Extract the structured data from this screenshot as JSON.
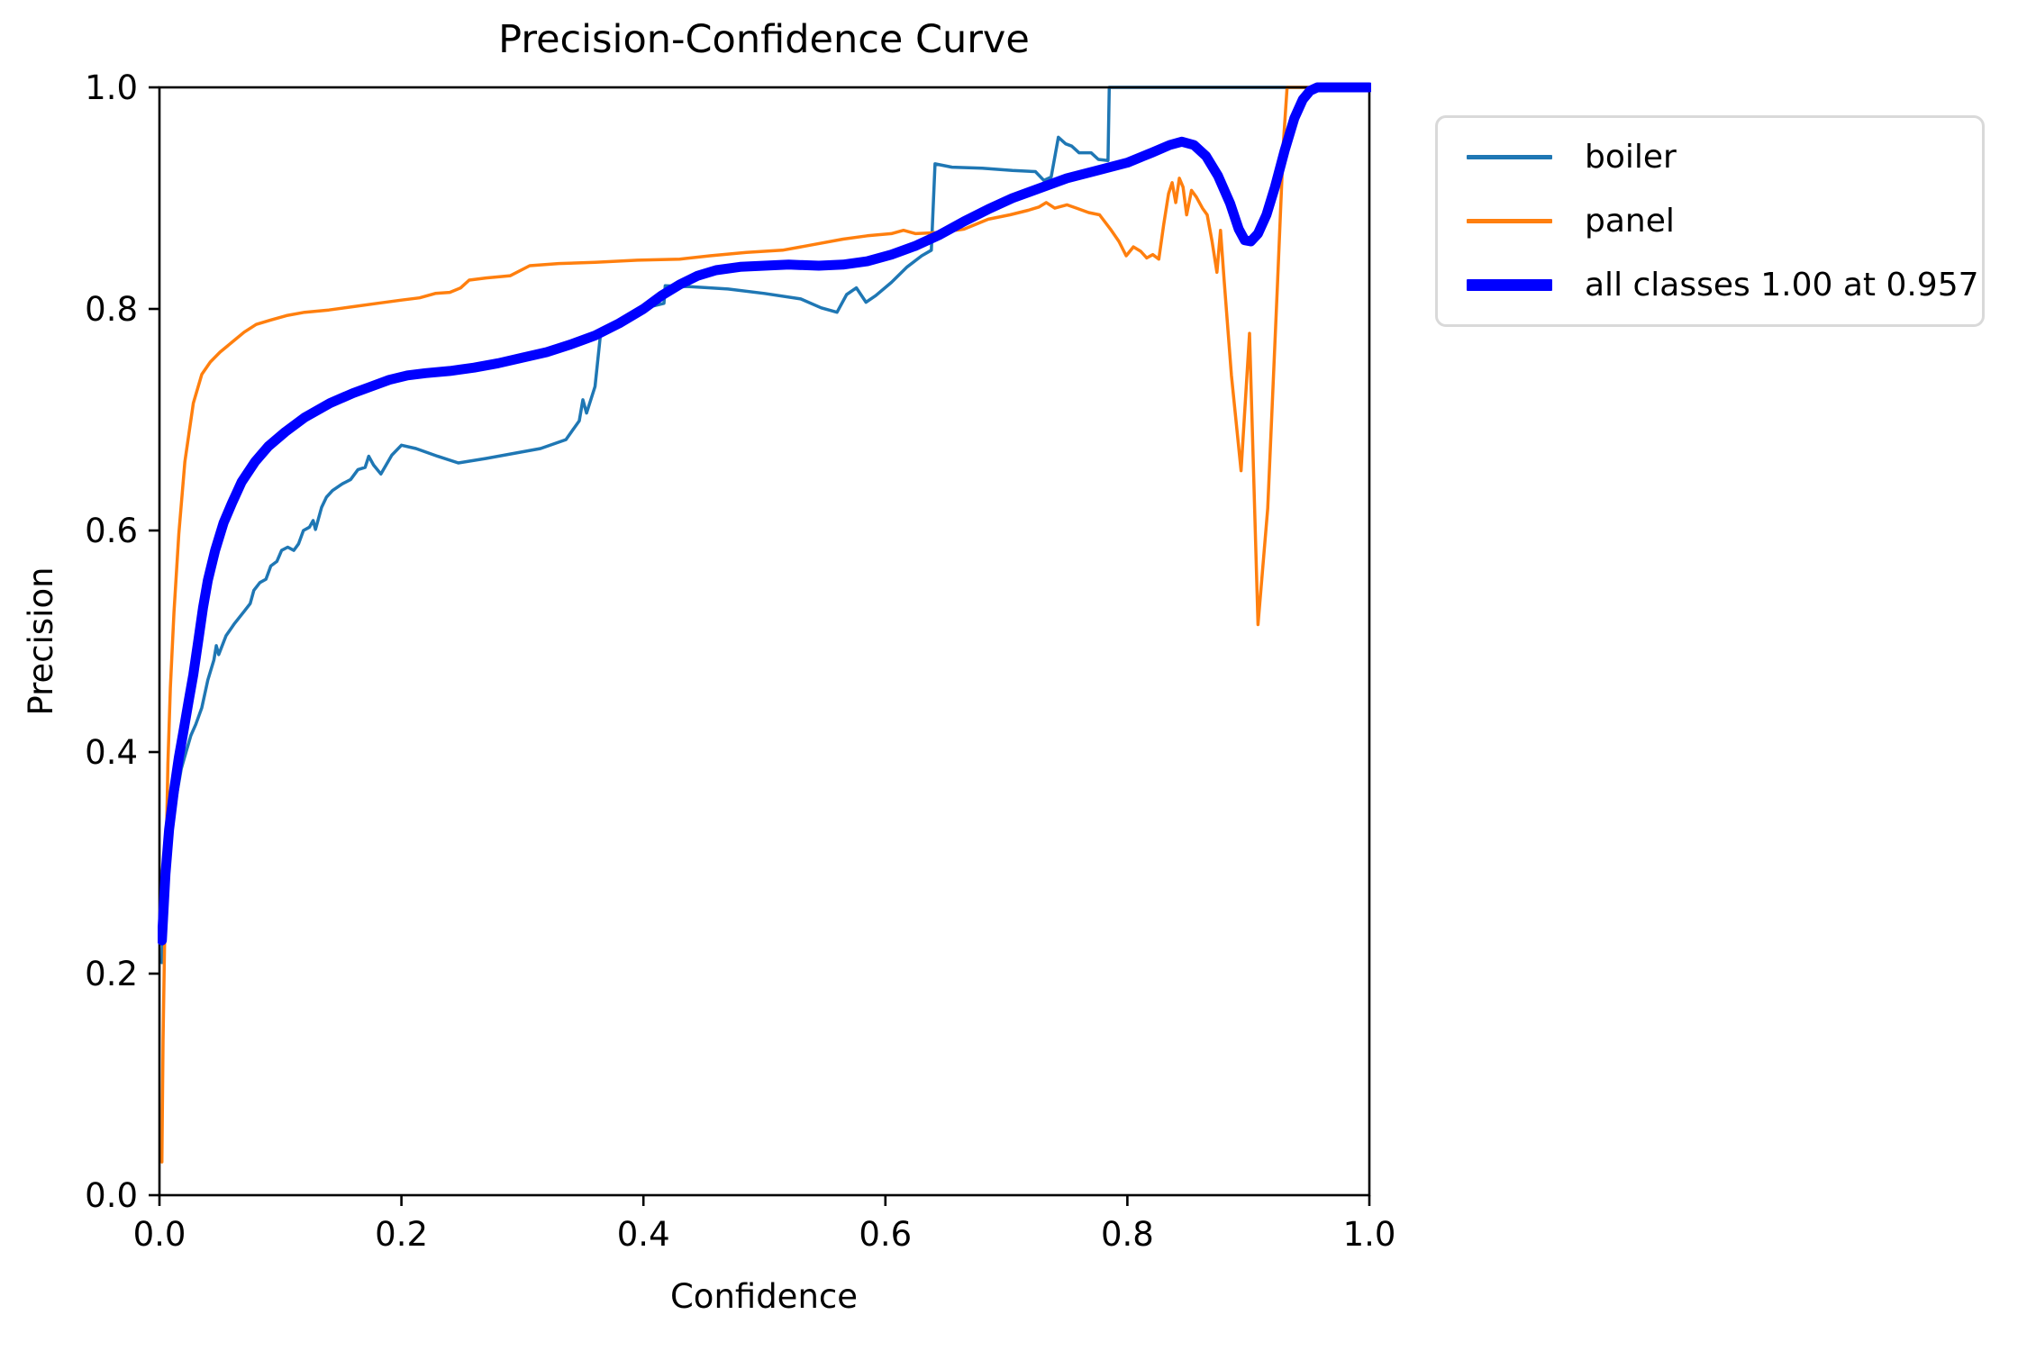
{
  "chart_data": {
    "type": "line",
    "title": "Precision-Confidence Curve",
    "xlabel": "Confidence",
    "ylabel": "Precision",
    "xlim": [
      0,
      1
    ],
    "ylim": [
      0,
      1
    ],
    "xticks": [
      "0.0",
      "0.2",
      "0.4",
      "0.6",
      "0.8",
      "1.0"
    ],
    "yticks": [
      "0.0",
      "0.2",
      "0.4",
      "0.6",
      "0.8",
      "1.0"
    ],
    "grid": false,
    "legend_position": "outside-upper-right",
    "axis_color": "#000000",
    "series": [
      {
        "name": "boiler",
        "color": "#1f77b4",
        "line_width": 3.5,
        "points": [
          [
            0.002,
            0.21
          ],
          [
            0.004,
            0.27
          ],
          [
            0.007,
            0.31
          ],
          [
            0.01,
            0.335
          ],
          [
            0.014,
            0.36
          ],
          [
            0.018,
            0.385
          ],
          [
            0.022,
            0.4
          ],
          [
            0.026,
            0.415
          ],
          [
            0.03,
            0.425
          ],
          [
            0.035,
            0.44
          ],
          [
            0.04,
            0.465
          ],
          [
            0.045,
            0.483
          ],
          [
            0.047,
            0.496
          ],
          [
            0.049,
            0.488
          ],
          [
            0.055,
            0.505
          ],
          [
            0.062,
            0.516
          ],
          [
            0.07,
            0.527
          ],
          [
            0.075,
            0.534
          ],
          [
            0.078,
            0.546
          ],
          [
            0.083,
            0.553
          ],
          [
            0.088,
            0.556
          ],
          [
            0.092,
            0.568
          ],
          [
            0.097,
            0.572
          ],
          [
            0.101,
            0.582
          ],
          [
            0.106,
            0.585
          ],
          [
            0.111,
            0.582
          ],
          [
            0.115,
            0.588
          ],
          [
            0.119,
            0.6
          ],
          [
            0.124,
            0.603
          ],
          [
            0.127,
            0.609
          ],
          [
            0.129,
            0.601
          ],
          [
            0.134,
            0.621
          ],
          [
            0.138,
            0.63
          ],
          [
            0.143,
            0.636
          ],
          [
            0.151,
            0.642
          ],
          [
            0.158,
            0.646
          ],
          [
            0.164,
            0.655
          ],
          [
            0.17,
            0.657
          ],
          [
            0.173,
            0.667
          ],
          [
            0.177,
            0.659
          ],
          [
            0.183,
            0.651
          ],
          [
            0.192,
            0.668
          ],
          [
            0.2,
            0.677
          ],
          [
            0.212,
            0.674
          ],
          [
            0.23,
            0.667
          ],
          [
            0.247,
            0.661
          ],
          [
            0.27,
            0.665
          ],
          [
            0.295,
            0.67
          ],
          [
            0.315,
            0.674
          ],
          [
            0.336,
            0.682
          ],
          [
            0.347,
            0.699
          ],
          [
            0.35,
            0.718
          ],
          [
            0.353,
            0.706
          ],
          [
            0.36,
            0.73
          ],
          [
            0.365,
            0.782
          ],
          [
            0.378,
            0.789
          ],
          [
            0.398,
            0.8
          ],
          [
            0.417,
            0.805
          ],
          [
            0.418,
            0.821
          ],
          [
            0.44,
            0.82
          ],
          [
            0.47,
            0.818
          ],
          [
            0.5,
            0.814
          ],
          [
            0.53,
            0.809
          ],
          [
            0.547,
            0.801
          ],
          [
            0.56,
            0.797
          ],
          [
            0.568,
            0.813
          ],
          [
            0.576,
            0.819
          ],
          [
            0.584,
            0.806
          ],
          [
            0.592,
            0.812
          ],
          [
            0.605,
            0.824
          ],
          [
            0.618,
            0.838
          ],
          [
            0.63,
            0.848
          ],
          [
            0.638,
            0.853
          ],
          [
            0.641,
            0.931
          ],
          [
            0.655,
            0.928
          ],
          [
            0.68,
            0.927
          ],
          [
            0.705,
            0.925
          ],
          [
            0.724,
            0.924
          ],
          [
            0.731,
            0.916
          ],
          [
            0.737,
            0.919
          ],
          [
            0.743,
            0.955
          ],
          [
            0.749,
            0.949
          ],
          [
            0.754,
            0.947
          ],
          [
            0.76,
            0.941
          ],
          [
            0.77,
            0.941
          ],
          [
            0.776,
            0.935
          ],
          [
            0.784,
            0.934
          ],
          [
            0.785,
            1.0
          ],
          [
            1.0,
            1.0
          ]
        ]
      },
      {
        "name": "panel",
        "color": "#ff7f0e",
        "line_width": 3.5,
        "points": [
          [
            0.002,
            0.03
          ],
          [
            0.003,
            0.14
          ],
          [
            0.005,
            0.28
          ],
          [
            0.007,
            0.39
          ],
          [
            0.009,
            0.458
          ],
          [
            0.012,
            0.526
          ],
          [
            0.016,
            0.597
          ],
          [
            0.021,
            0.662
          ],
          [
            0.028,
            0.715
          ],
          [
            0.035,
            0.741
          ],
          [
            0.042,
            0.752
          ],
          [
            0.05,
            0.761
          ],
          [
            0.06,
            0.77
          ],
          [
            0.07,
            0.779
          ],
          [
            0.08,
            0.786
          ],
          [
            0.092,
            0.79
          ],
          [
            0.105,
            0.794
          ],
          [
            0.12,
            0.797
          ],
          [
            0.14,
            0.799
          ],
          [
            0.16,
            0.802
          ],
          [
            0.18,
            0.805
          ],
          [
            0.2,
            0.808
          ],
          [
            0.215,
            0.81
          ],
          [
            0.228,
            0.814
          ],
          [
            0.24,
            0.815
          ],
          [
            0.249,
            0.819
          ],
          [
            0.256,
            0.826
          ],
          [
            0.27,
            0.828
          ],
          [
            0.29,
            0.83
          ],
          [
            0.306,
            0.839
          ],
          [
            0.33,
            0.841
          ],
          [
            0.36,
            0.842
          ],
          [
            0.395,
            0.844
          ],
          [
            0.43,
            0.845
          ],
          [
            0.455,
            0.848
          ],
          [
            0.485,
            0.851
          ],
          [
            0.515,
            0.853
          ],
          [
            0.54,
            0.858
          ],
          [
            0.565,
            0.863
          ],
          [
            0.585,
            0.866
          ],
          [
            0.605,
            0.868
          ],
          [
            0.615,
            0.871
          ],
          [
            0.625,
            0.868
          ],
          [
            0.645,
            0.869
          ],
          [
            0.665,
            0.872
          ],
          [
            0.685,
            0.881
          ],
          [
            0.703,
            0.885
          ],
          [
            0.718,
            0.889
          ],
          [
            0.727,
            0.892
          ],
          [
            0.733,
            0.896
          ],
          [
            0.74,
            0.891
          ],
          [
            0.75,
            0.894
          ],
          [
            0.758,
            0.891
          ],
          [
            0.768,
            0.887
          ],
          [
            0.777,
            0.885
          ],
          [
            0.786,
            0.872
          ],
          [
            0.793,
            0.861
          ],
          [
            0.799,
            0.848
          ],
          [
            0.805,
            0.856
          ],
          [
            0.811,
            0.852
          ],
          [
            0.816,
            0.846
          ],
          [
            0.821,
            0.849
          ],
          [
            0.826,
            0.845
          ],
          [
            0.83,
            0.876
          ],
          [
            0.834,
            0.904
          ],
          [
            0.837,
            0.914
          ],
          [
            0.84,
            0.896
          ],
          [
            0.843,
            0.918
          ],
          [
            0.846,
            0.91
          ],
          [
            0.849,
            0.885
          ],
          [
            0.853,
            0.907
          ],
          [
            0.857,
            0.901
          ],
          [
            0.862,
            0.891
          ],
          [
            0.866,
            0.885
          ],
          [
            0.87,
            0.861
          ],
          [
            0.874,
            0.833
          ],
          [
            0.877,
            0.871
          ],
          [
            0.88,
            0.826
          ],
          [
            0.886,
            0.74
          ],
          [
            0.894,
            0.654
          ],
          [
            0.901,
            0.778
          ],
          [
            0.908,
            0.515
          ],
          [
            0.916,
            0.62
          ],
          [
            0.924,
            0.82
          ],
          [
            0.929,
            0.95
          ],
          [
            0.932,
            1.0
          ],
          [
            1.0,
            1.0
          ]
        ]
      },
      {
        "name": "all classes 1.00 at 0.957",
        "color": "#0000ff",
        "line_width": 11,
        "points": [
          [
            0.002,
            0.23
          ],
          [
            0.005,
            0.29
          ],
          [
            0.008,
            0.33
          ],
          [
            0.012,
            0.365
          ],
          [
            0.016,
            0.395
          ],
          [
            0.02,
            0.42
          ],
          [
            0.024,
            0.445
          ],
          [
            0.028,
            0.47
          ],
          [
            0.032,
            0.5
          ],
          [
            0.036,
            0.53
          ],
          [
            0.04,
            0.555
          ],
          [
            0.046,
            0.582
          ],
          [
            0.053,
            0.607
          ],
          [
            0.06,
            0.625
          ],
          [
            0.068,
            0.644
          ],
          [
            0.079,
            0.662
          ],
          [
            0.09,
            0.676
          ],
          [
            0.104,
            0.689
          ],
          [
            0.12,
            0.702
          ],
          [
            0.141,
            0.715
          ],
          [
            0.16,
            0.724
          ],
          [
            0.175,
            0.73
          ],
          [
            0.19,
            0.736
          ],
          [
            0.205,
            0.74
          ],
          [
            0.22,
            0.742
          ],
          [
            0.24,
            0.744
          ],
          [
            0.26,
            0.747
          ],
          [
            0.28,
            0.751
          ],
          [
            0.3,
            0.756
          ],
          [
            0.32,
            0.761
          ],
          [
            0.34,
            0.768
          ],
          [
            0.36,
            0.776
          ],
          [
            0.38,
            0.787
          ],
          [
            0.4,
            0.8
          ],
          [
            0.415,
            0.812
          ],
          [
            0.43,
            0.822
          ],
          [
            0.445,
            0.83
          ],
          [
            0.46,
            0.835
          ],
          [
            0.48,
            0.838
          ],
          [
            0.5,
            0.839
          ],
          [
            0.52,
            0.84
          ],
          [
            0.545,
            0.839
          ],
          [
            0.565,
            0.84
          ],
          [
            0.585,
            0.843
          ],
          [
            0.605,
            0.849
          ],
          [
            0.625,
            0.857
          ],
          [
            0.645,
            0.867
          ],
          [
            0.665,
            0.879
          ],
          [
            0.685,
            0.89
          ],
          [
            0.705,
            0.9
          ],
          [
            0.725,
            0.908
          ],
          [
            0.75,
            0.918
          ],
          [
            0.775,
            0.925
          ],
          [
            0.8,
            0.932
          ],
          [
            0.82,
            0.941
          ],
          [
            0.835,
            0.948
          ],
          [
            0.845,
            0.951
          ],
          [
            0.855,
            0.948
          ],
          [
            0.865,
            0.938
          ],
          [
            0.875,
            0.92
          ],
          [
            0.885,
            0.895
          ],
          [
            0.892,
            0.872
          ],
          [
            0.897,
            0.862
          ],
          [
            0.902,
            0.861
          ],
          [
            0.908,
            0.868
          ],
          [
            0.915,
            0.885
          ],
          [
            0.922,
            0.91
          ],
          [
            0.93,
            0.943
          ],
          [
            0.938,
            0.972
          ],
          [
            0.945,
            0.989
          ],
          [
            0.951,
            0.997
          ],
          [
            0.957,
            1.0
          ],
          [
            1.0,
            1.0
          ]
        ]
      }
    ]
  }
}
